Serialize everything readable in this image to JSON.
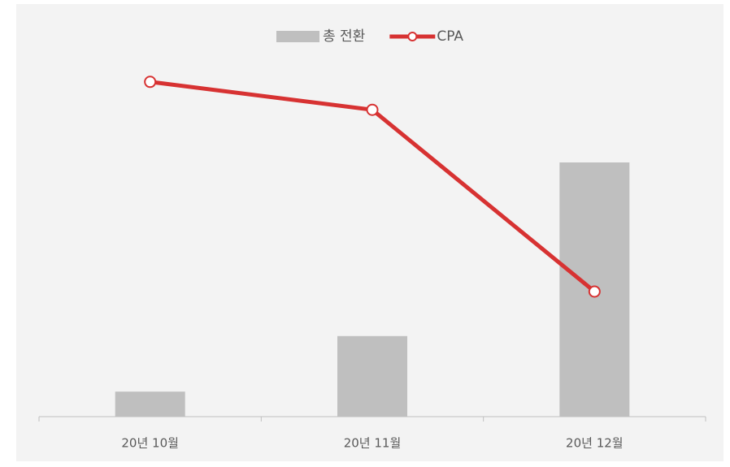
{
  "chart_data": {
    "type": "bar-line",
    "categories": [
      "20년 10월",
      "20년 11월",
      "20년 12월"
    ],
    "series": [
      {
        "name": "총 전환",
        "type": "bar",
        "color": "#bfbfbf",
        "values": [
          6.8,
          21.9,
          69.1
        ]
      },
      {
        "name": "CPA",
        "type": "line",
        "color": "#d73232",
        "axis": "y2",
        "values": [
          91,
          83.4,
          34
        ]
      }
    ],
    "ylim": [
      0,
      100
    ],
    "y2lim": [
      0,
      100
    ],
    "legend": "top"
  }
}
